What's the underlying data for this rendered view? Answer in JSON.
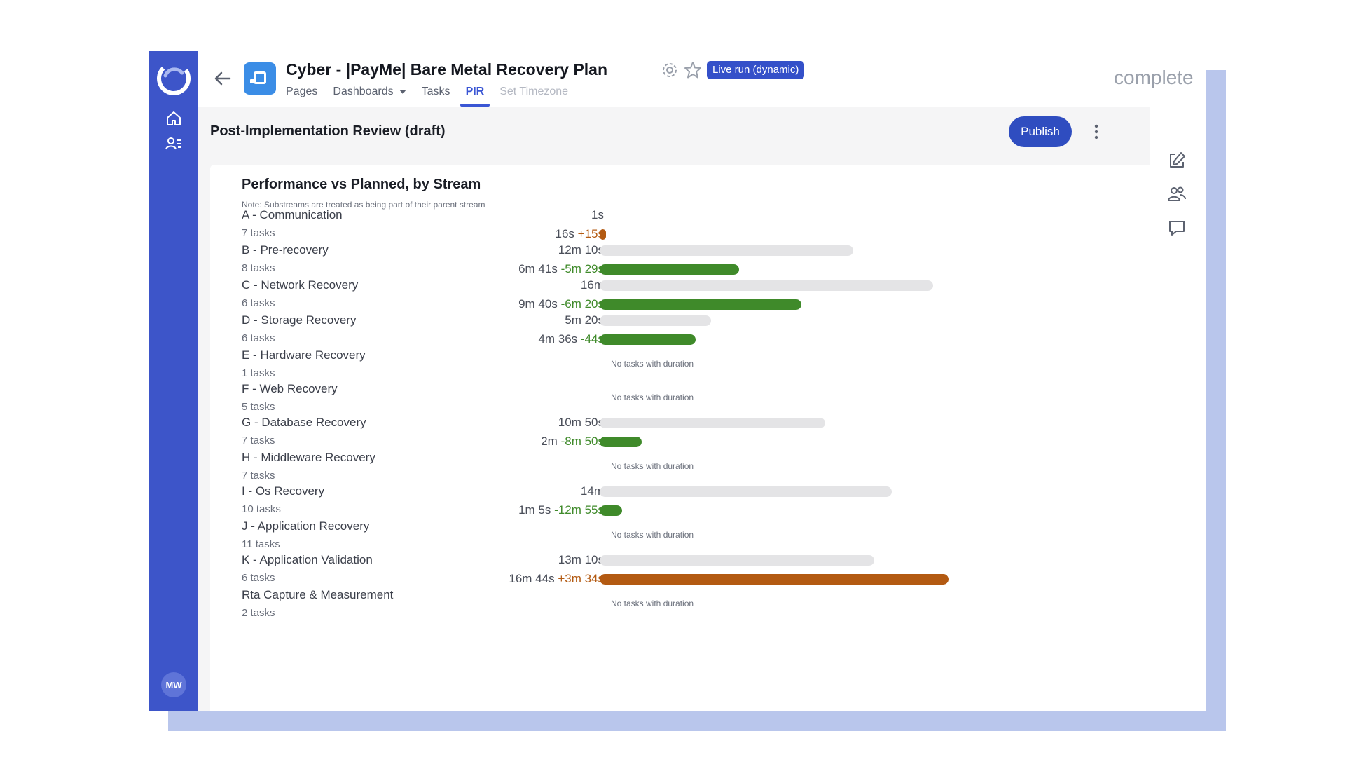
{
  "header": {
    "title": "Cyber - |PayMe| Bare Metal Recovery Plan",
    "badge": "Live run (dynamic)",
    "status": "complete",
    "tabs": [
      {
        "label": "Pages"
      },
      {
        "label": "Dashboards"
      },
      {
        "label": "Tasks"
      },
      {
        "label": "PIR"
      },
      {
        "label": "Set Timezone"
      }
    ],
    "active_tab": "PIR"
  },
  "sidebar": {
    "avatar_initials": "MW",
    "icons": [
      "logo-icon",
      "home-icon",
      "users-list-icon"
    ]
  },
  "page": {
    "title": "Post-Implementation Review (draft)",
    "publish_label": "Publish"
  },
  "right_rail": {
    "icons": [
      "edit-icon",
      "people-icon",
      "comment-icon"
    ]
  },
  "card": {
    "title": "Performance vs Planned, by Stream",
    "note": "Note: Substreams are treated as being part of their parent stream",
    "no_duration_text": "No tasks with duration"
  },
  "colors": {
    "sidebar": "#3d55c9",
    "accent": "#2f4dc0",
    "ahead": "#3f8a2a",
    "behind": "#b35a12",
    "planned_bar": "#e4e4e6"
  },
  "chart_data": {
    "type": "bar",
    "unit": "seconds",
    "streams": [
      {
        "name": "A - Communication",
        "tasks": "7 tasks",
        "planned_label": "1s",
        "planned_seconds": 1,
        "actual_label": "16s",
        "delta_label": "+15s",
        "actual_seconds": 16,
        "status": "behind"
      },
      {
        "name": "B - Pre-recovery",
        "tasks": "8 tasks",
        "planned_label": "12m 10s",
        "planned_seconds": 730,
        "actual_label": "6m 41s",
        "delta_label": "-5m 29s",
        "actual_seconds": 401,
        "status": "ahead"
      },
      {
        "name": "C - Network Recovery",
        "tasks": "6 tasks",
        "planned_label": "16m",
        "planned_seconds": 960,
        "actual_label": "9m 40s",
        "delta_label": "-6m 20s",
        "actual_seconds": 580,
        "status": "ahead"
      },
      {
        "name": "D - Storage Recovery",
        "tasks": "6 tasks",
        "planned_label": "5m 20s",
        "planned_seconds": 320,
        "actual_label": "4m 36s",
        "delta_label": "-44s",
        "actual_seconds": 276,
        "status": "ahead"
      },
      {
        "name": "E - Hardware Recovery",
        "tasks": "1 tasks",
        "no_duration": true
      },
      {
        "name": "F - Web Recovery",
        "tasks": "5 tasks",
        "no_duration": true
      },
      {
        "name": "G - Database Recovery",
        "tasks": "7 tasks",
        "planned_label": "10m 50s",
        "planned_seconds": 650,
        "actual_label": "2m",
        "delta_label": "-8m 50s",
        "actual_seconds": 120,
        "status": "ahead"
      },
      {
        "name": "H - Middleware Recovery",
        "tasks": "7 tasks",
        "no_duration": true
      },
      {
        "name": "I - Os Recovery",
        "tasks": "10 tasks",
        "planned_label": "14m",
        "planned_seconds": 840,
        "actual_label": "1m 5s",
        "delta_label": "-12m 55s",
        "actual_seconds": 65,
        "status": "ahead"
      },
      {
        "name": "J - Application Recovery",
        "tasks": "11 tasks",
        "no_duration": true
      },
      {
        "name": "K - Application Validation",
        "tasks": "6 tasks",
        "planned_label": "13m 10s",
        "planned_seconds": 790,
        "actual_label": "16m 44s",
        "delta_label": "+3m 34s",
        "actual_seconds": 1004,
        "status": "behind"
      },
      {
        "name": "Rta Capture & Measurement",
        "tasks": "2 tasks",
        "no_duration": true
      }
    ]
  }
}
